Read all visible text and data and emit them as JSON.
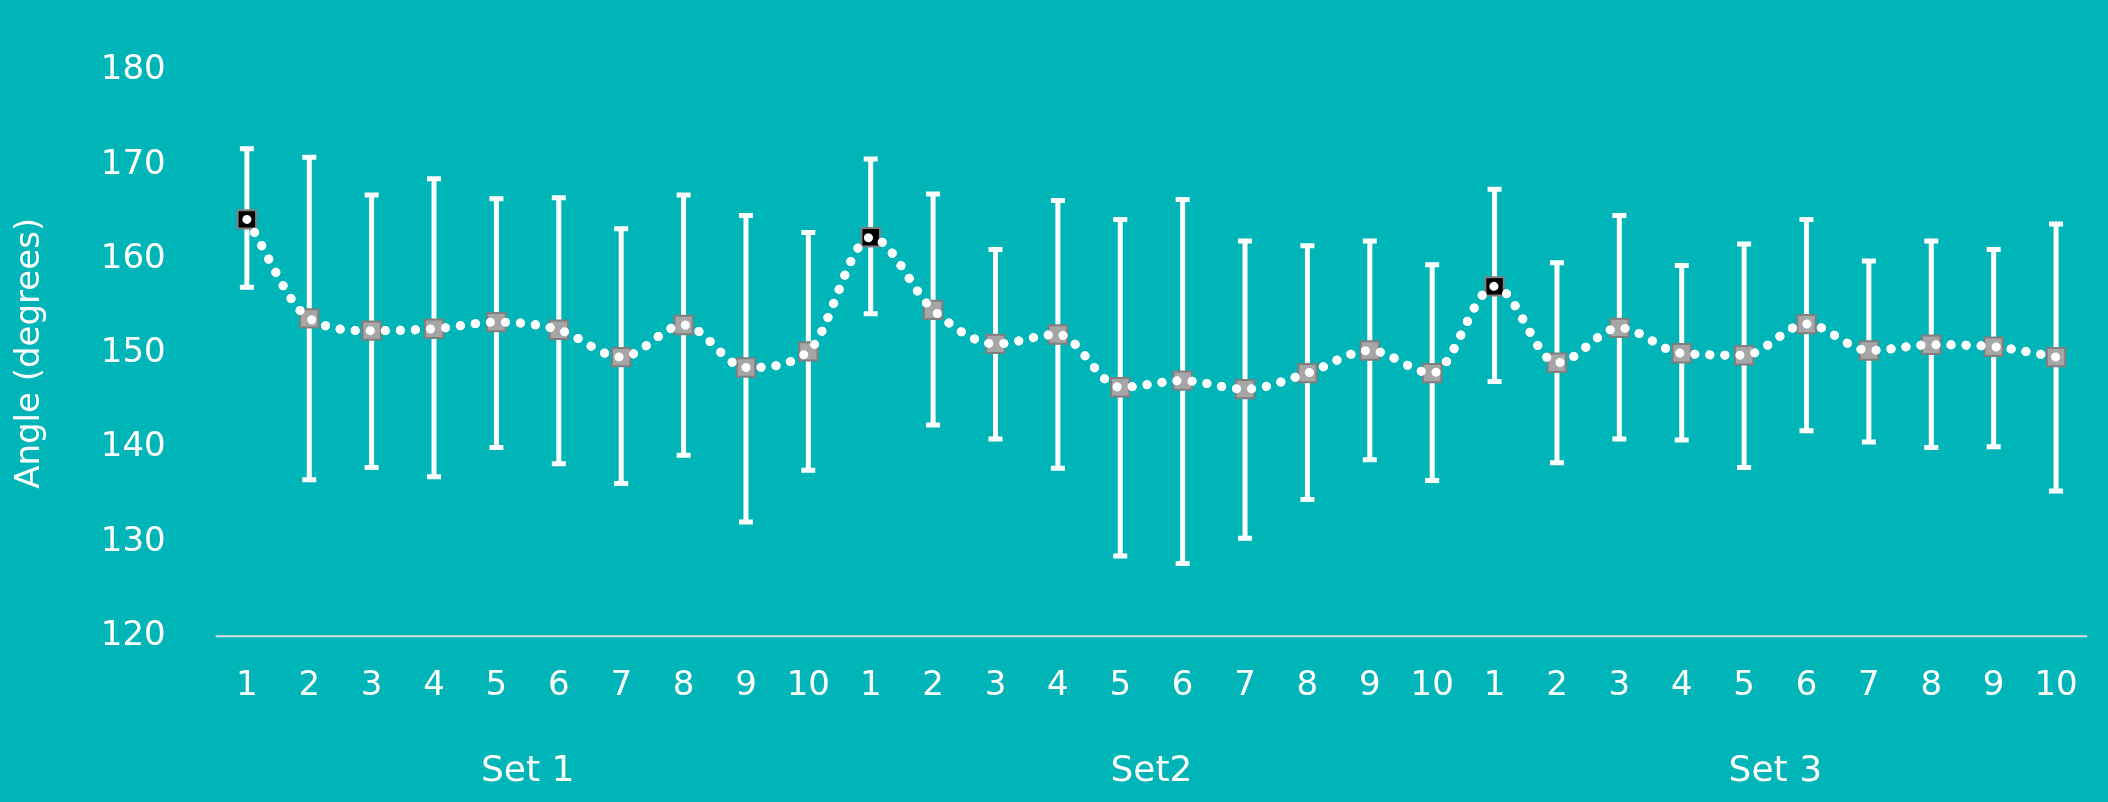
{
  "chart_data": {
    "type": "line",
    "ylabel": "Angle (degrees)",
    "categories": [
      "1",
      "2",
      "3",
      "4",
      "5",
      "6",
      "7",
      "8",
      "9",
      "10",
      "1",
      "2",
      "3",
      "4",
      "5",
      "6",
      "7",
      "8",
      "9",
      "10",
      "1",
      "2",
      "3",
      "4",
      "5",
      "6",
      "7",
      "8",
      "9",
      "10"
    ],
    "series": [
      {
        "color": "#ffffff",
        "colors": [
          "#000000",
          "#a6a6a6",
          "#a6a6a6",
          "#a6a6a6",
          "#a6a6a6",
          "#a6a6a6",
          "#a6a6a6",
          "#a6a6a6",
          "#a6a6a6",
          "#a6a6a6",
          "#000000",
          "#a6a6a6",
          "#a6a6a6",
          "#a6a6a6",
          "#a6a6a6",
          "#a6a6a6",
          "#a6a6a6",
          "#a6a6a6",
          "#a6a6a6",
          "#a6a6a6",
          "#000000",
          "#a6a6a6",
          "#a6a6a6",
          "#a6a6a6",
          "#a6a6a6",
          "#a6a6a6",
          "#a6a6a6",
          "#a6a6a6",
          "#a6a6a6",
          "#a6a6a6"
        ],
        "values": [
          164.2,
          153.7,
          152.4,
          152.6,
          153.3,
          152.5,
          149.6,
          153.0,
          148.5,
          150.2,
          162.3,
          154.6,
          151.0,
          152.0,
          146.4,
          147.1,
          146.2,
          147.9,
          150.3,
          147.9,
          157.1,
          149.0,
          152.7,
          150.0,
          149.8,
          153.1,
          150.3,
          150.9,
          150.7,
          149.6
        ],
        "errors": [
          [
            157.0,
            171.7
          ],
          [
            136.6,
            170.8
          ],
          [
            137.9,
            166.8
          ],
          [
            136.9,
            168.5
          ],
          [
            140.0,
            166.4
          ],
          [
            138.3,
            166.5
          ],
          [
            136.2,
            163.2
          ],
          [
            139.2,
            166.8
          ],
          [
            132.1,
            164.6
          ],
          [
            137.6,
            162.8
          ],
          [
            154.2,
            170.6
          ],
          [
            142.4,
            166.9
          ],
          [
            140.9,
            161.0
          ],
          [
            137.8,
            166.2
          ],
          [
            128.5,
            164.2
          ],
          [
            127.7,
            166.3
          ],
          [
            130.4,
            161.9
          ],
          [
            134.5,
            161.4
          ],
          [
            138.7,
            161.9
          ],
          [
            136.5,
            159.4
          ],
          [
            147.0,
            167.4
          ],
          [
            138.4,
            159.6
          ],
          [
            140.9,
            164.6
          ],
          [
            140.8,
            159.3
          ],
          [
            137.9,
            161.6
          ],
          [
            141.8,
            164.2
          ],
          [
            140.6,
            159.8
          ],
          [
            140.0,
            161.9
          ],
          [
            140.1,
            161.0
          ],
          [
            135.4,
            163.7
          ]
        ]
      }
    ],
    "ylim": [
      120,
      180
    ],
    "yticks": [
      120,
      130,
      140,
      150,
      160,
      170,
      180
    ],
    "grid": false,
    "legend": false,
    "marker": "square",
    "line_style": "dotted",
    "annotations": [
      "Set 1",
      "Set2",
      "Set 3"
    ]
  }
}
